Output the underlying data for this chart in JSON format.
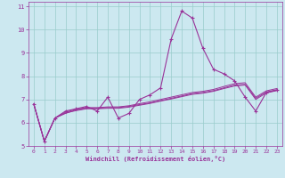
{
  "background_color": "#cce8f0",
  "line_color": "#993399",
  "grid_color": "#99cccc",
  "xlabel": "Windchill (Refroidissement éolien,°C)",
  "xlim": [
    -0.5,
    23.5
  ],
  "ylim": [
    5,
    11.2
  ],
  "xticks": [
    0,
    1,
    2,
    3,
    4,
    5,
    6,
    7,
    8,
    9,
    10,
    11,
    12,
    13,
    14,
    15,
    16,
    17,
    18,
    19,
    20,
    21,
    22,
    23
  ],
  "yticks": [
    5,
    6,
    7,
    8,
    9,
    10,
    11
  ],
  "line1_x": [
    0,
    1,
    2,
    3,
    4,
    5,
    6,
    7,
    8,
    9,
    10,
    11,
    12,
    13,
    14,
    15,
    16,
    17,
    18,
    19,
    20,
    21,
    22,
    23
  ],
  "line1_y": [
    6.8,
    5.2,
    6.2,
    6.5,
    6.6,
    6.7,
    6.5,
    7.1,
    6.2,
    6.4,
    7.0,
    7.2,
    7.5,
    9.6,
    10.8,
    10.5,
    9.2,
    8.3,
    8.1,
    7.8,
    7.1,
    6.5,
    7.3,
    7.4
  ],
  "line2_x": [
    0,
    1,
    2,
    3,
    4,
    5,
    6,
    7,
    8,
    9,
    10,
    11,
    12,
    13,
    14,
    15,
    16,
    17,
    18,
    19,
    20,
    21,
    22,
    23
  ],
  "line2_y": [
    6.8,
    5.2,
    6.2,
    6.4,
    6.55,
    6.62,
    6.62,
    6.65,
    6.65,
    6.7,
    6.78,
    6.85,
    6.95,
    7.05,
    7.15,
    7.25,
    7.3,
    7.38,
    7.5,
    7.62,
    7.65,
    7.05,
    7.32,
    7.42
  ],
  "line3_x": [
    0,
    1,
    2,
    3,
    4,
    5,
    6,
    7,
    8,
    9,
    10,
    11,
    12,
    13,
    14,
    15,
    16,
    17,
    18,
    19,
    20,
    21,
    22,
    23
  ],
  "line3_y": [
    6.8,
    5.2,
    6.2,
    6.45,
    6.58,
    6.65,
    6.65,
    6.68,
    6.68,
    6.73,
    6.82,
    6.9,
    7.0,
    7.1,
    7.2,
    7.3,
    7.35,
    7.43,
    7.56,
    7.68,
    7.72,
    7.1,
    7.37,
    7.47
  ],
  "line4_x": [
    0,
    1,
    2,
    3,
    4,
    5,
    6,
    7,
    8,
    9,
    10,
    11,
    12,
    13,
    14,
    15,
    16,
    17,
    18,
    19,
    20,
    21,
    22,
    23
  ],
  "line4_y": [
    6.8,
    5.2,
    6.2,
    6.42,
    6.52,
    6.6,
    6.6,
    6.62,
    6.62,
    6.67,
    6.75,
    6.83,
    6.93,
    7.02,
    7.12,
    7.22,
    7.27,
    7.35,
    7.47,
    7.58,
    7.62,
    7.0,
    7.28,
    7.38
  ]
}
